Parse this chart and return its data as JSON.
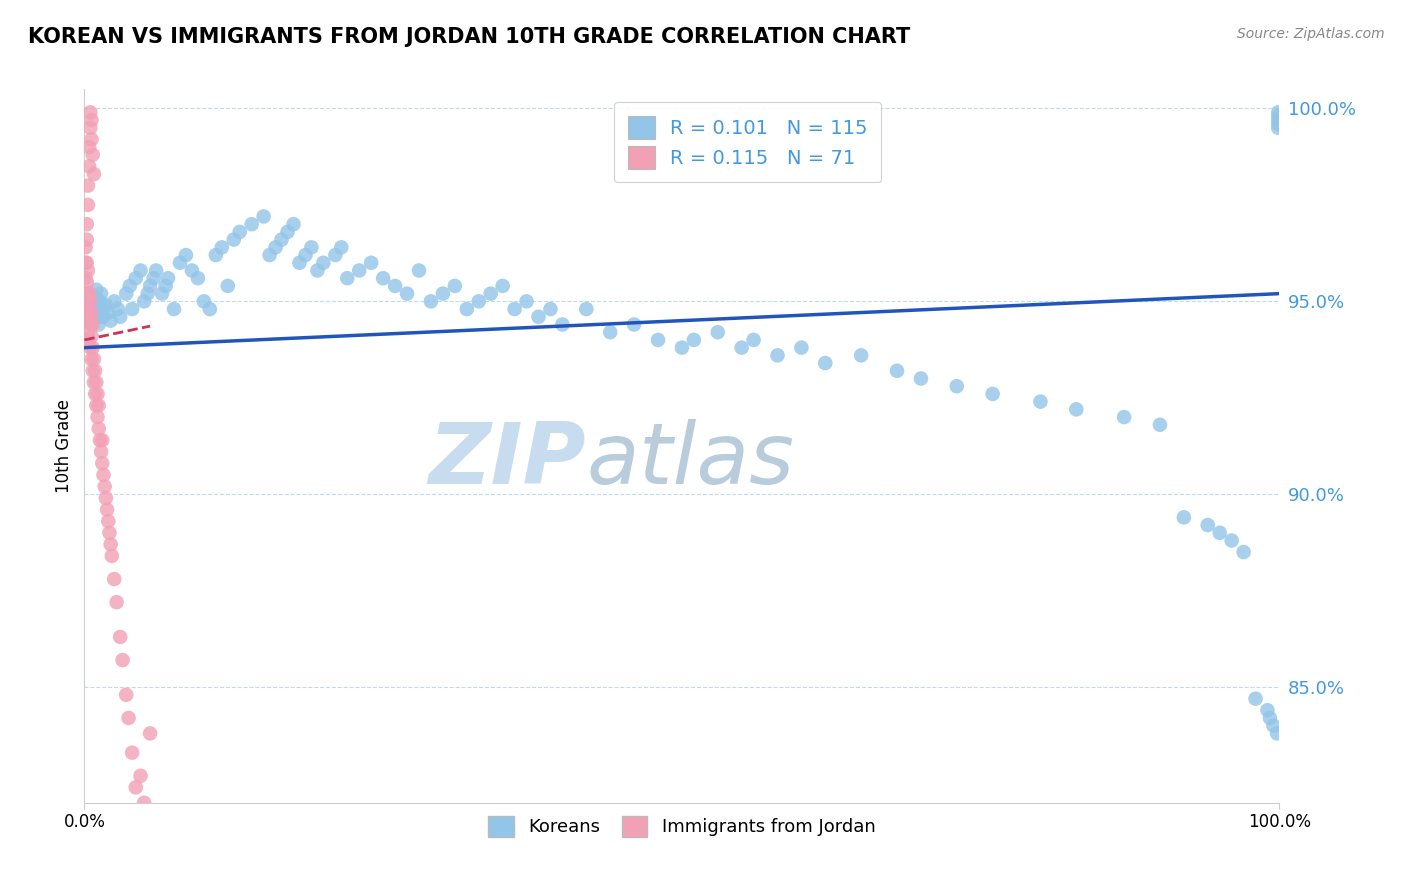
{
  "title": "KOREAN VS IMMIGRANTS FROM JORDAN 10TH GRADE CORRELATION CHART",
  "source": "Source: ZipAtlas.com",
  "ylabel": "10th Grade",
  "watermark_zip": "ZIP",
  "watermark_atlas": "atlas",
  "legend_korean_R": "0.101",
  "legend_korean_N": "115",
  "legend_jordan_R": "0.115",
  "legend_jordan_N": "71",
  "x_min": 0.0,
  "x_max": 1.0,
  "y_min": 0.82,
  "y_max": 1.005,
  "yticks": [
    0.85,
    0.9,
    0.95,
    1.0
  ],
  "ytick_labels": [
    "85.0%",
    "90.0%",
    "95.0%",
    "100.0%"
  ],
  "color_korean": "#92C5E8",
  "color_jordan": "#F2A0B5",
  "color_line_korean": "#2255BB",
  "color_line_jordan": "#CC3355",
  "color_text_blue": "#4499DD",
  "color_grid": "#BBDDEE",
  "color_watermark": "#C8DCF0",
  "blue_x": [
    0.002,
    0.003,
    0.004,
    0.005,
    0.006,
    0.007,
    0.008,
    0.009,
    0.01,
    0.011,
    0.012,
    0.013,
    0.014,
    0.015,
    0.016,
    0.018,
    0.02,
    0.022,
    0.025,
    0.028,
    0.03,
    0.035,
    0.038,
    0.04,
    0.043,
    0.047,
    0.05,
    0.053,
    0.055,
    0.058,
    0.06,
    0.065,
    0.068,
    0.07,
    0.075,
    0.08,
    0.085,
    0.09,
    0.095,
    0.1,
    0.105,
    0.11,
    0.115,
    0.12,
    0.125,
    0.13,
    0.14,
    0.15,
    0.155,
    0.16,
    0.165,
    0.17,
    0.175,
    0.18,
    0.185,
    0.19,
    0.195,
    0.2,
    0.21,
    0.215,
    0.22,
    0.23,
    0.24,
    0.25,
    0.26,
    0.27,
    0.28,
    0.29,
    0.3,
    0.31,
    0.32,
    0.33,
    0.34,
    0.35,
    0.36,
    0.37,
    0.38,
    0.39,
    0.4,
    0.42,
    0.44,
    0.46,
    0.48,
    0.5,
    0.51,
    0.53,
    0.55,
    0.56,
    0.58,
    0.6,
    0.62,
    0.65,
    0.68,
    0.7,
    0.73,
    0.76,
    0.8,
    0.83,
    0.87,
    0.9,
    0.92,
    0.94,
    0.95,
    0.96,
    0.97,
    0.98,
    0.99,
    0.992,
    0.995,
    0.998,
    0.999,
    0.999,
    0.999,
    0.999,
    0.999
  ],
  "blue_y": [
    0.945,
    0.948,
    0.946,
    0.952,
    0.95,
    0.947,
    0.949,
    0.951,
    0.953,
    0.946,
    0.944,
    0.95,
    0.952,
    0.948,
    0.946,
    0.949,
    0.947,
    0.945,
    0.95,
    0.948,
    0.946,
    0.952,
    0.954,
    0.948,
    0.956,
    0.958,
    0.95,
    0.952,
    0.954,
    0.956,
    0.958,
    0.952,
    0.954,
    0.956,
    0.948,
    0.96,
    0.962,
    0.958,
    0.956,
    0.95,
    0.948,
    0.962,
    0.964,
    0.954,
    0.966,
    0.968,
    0.97,
    0.972,
    0.962,
    0.964,
    0.966,
    0.968,
    0.97,
    0.96,
    0.962,
    0.964,
    0.958,
    0.96,
    0.962,
    0.964,
    0.956,
    0.958,
    0.96,
    0.956,
    0.954,
    0.952,
    0.958,
    0.95,
    0.952,
    0.954,
    0.948,
    0.95,
    0.952,
    0.954,
    0.948,
    0.95,
    0.946,
    0.948,
    0.944,
    0.948,
    0.942,
    0.944,
    0.94,
    0.938,
    0.94,
    0.942,
    0.938,
    0.94,
    0.936,
    0.938,
    0.934,
    0.936,
    0.932,
    0.93,
    0.928,
    0.926,
    0.924,
    0.922,
    0.92,
    0.918,
    0.894,
    0.892,
    0.89,
    0.888,
    0.885,
    0.847,
    0.844,
    0.842,
    0.84,
    0.838,
    0.999,
    0.998,
    0.997,
    0.996,
    0.995
  ],
  "pink_x": [
    0.001,
    0.001,
    0.001,
    0.001,
    0.001,
    0.002,
    0.002,
    0.002,
    0.002,
    0.002,
    0.003,
    0.003,
    0.003,
    0.003,
    0.004,
    0.004,
    0.004,
    0.005,
    0.005,
    0.005,
    0.006,
    0.006,
    0.006,
    0.007,
    0.007,
    0.007,
    0.008,
    0.008,
    0.009,
    0.009,
    0.01,
    0.01,
    0.011,
    0.011,
    0.012,
    0.012,
    0.013,
    0.014,
    0.015,
    0.015,
    0.016,
    0.017,
    0.018,
    0.019,
    0.02,
    0.021,
    0.022,
    0.023,
    0.025,
    0.027,
    0.03,
    0.032,
    0.035,
    0.037,
    0.04,
    0.043,
    0.045,
    0.047,
    0.05,
    0.055,
    0.002,
    0.003,
    0.003,
    0.004,
    0.004,
    0.005,
    0.005,
    0.006,
    0.006,
    0.007,
    0.008
  ],
  "pink_y": [
    0.948,
    0.952,
    0.956,
    0.96,
    0.964,
    0.945,
    0.95,
    0.955,
    0.96,
    0.966,
    0.942,
    0.947,
    0.952,
    0.958,
    0.94,
    0.946,
    0.952,
    0.938,
    0.944,
    0.95,
    0.935,
    0.941,
    0.947,
    0.932,
    0.938,
    0.944,
    0.929,
    0.935,
    0.926,
    0.932,
    0.923,
    0.929,
    0.92,
    0.926,
    0.917,
    0.923,
    0.914,
    0.911,
    0.908,
    0.914,
    0.905,
    0.902,
    0.899,
    0.896,
    0.893,
    0.89,
    0.887,
    0.884,
    0.878,
    0.872,
    0.863,
    0.857,
    0.848,
    0.842,
    0.833,
    0.824,
    0.818,
    0.827,
    0.82,
    0.838,
    0.97,
    0.975,
    0.98,
    0.985,
    0.99,
    0.995,
    0.999,
    0.997,
    0.992,
    0.988,
    0.983
  ]
}
